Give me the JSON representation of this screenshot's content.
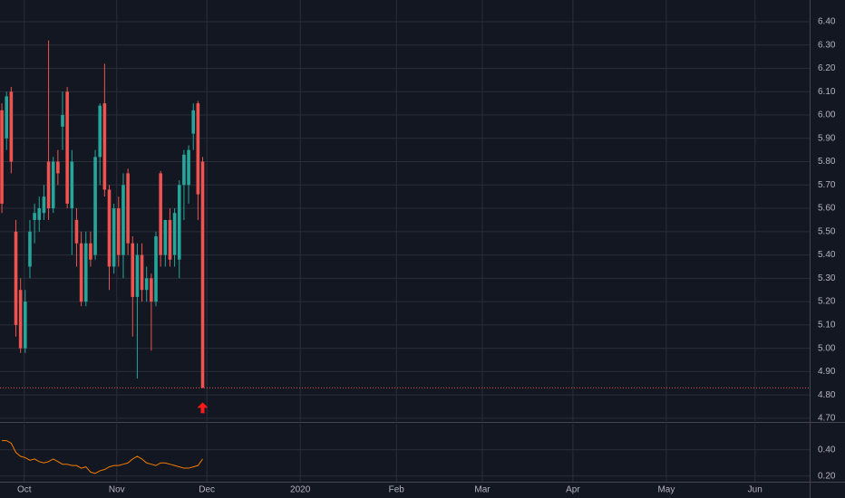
{
  "chart_data": [
    {
      "type": "candlestick",
      "x": [
        0,
        1,
        2,
        3,
        4,
        5,
        6,
        7,
        8,
        9,
        10,
        11,
        12,
        13,
        14,
        15,
        16,
        17,
        18,
        19,
        20,
        21,
        22,
        23,
        24,
        25,
        26,
        27,
        28,
        29,
        30,
        31,
        32,
        33,
        34,
        35,
        36,
        37,
        38,
        39,
        40,
        41,
        42,
        43
      ],
      "open": [
        6.02,
        5.9,
        6.1,
        5.5,
        5.25,
        5.0,
        5.35,
        5.55,
        5.55,
        5.58,
        5.8,
        5.6,
        5.8,
        5.95,
        6.1,
        5.6,
        5.55,
        5.45,
        5.2,
        5.45,
        5.4,
        5.82,
        6.05,
        5.68,
        5.35,
        5.6,
        5.4,
        5.75,
        5.45,
        5.22,
        5.4,
        5.25,
        5.3,
        5.2,
        5.75,
        5.4,
        5.55,
        5.4,
        5.38,
        5.7,
        5.7,
        5.92,
        6.05,
        5.8
      ],
      "high": [
        6.05,
        6.1,
        6.12,
        5.55,
        5.3,
        5.25,
        5.55,
        5.62,
        5.65,
        5.7,
        6.32,
        5.82,
        5.85,
        6.1,
        6.12,
        5.85,
        5.6,
        5.5,
        5.5,
        5.5,
        5.85,
        6.05,
        6.22,
        5.7,
        5.62,
        5.65,
        5.75,
        5.77,
        5.48,
        5.45,
        5.45,
        5.35,
        5.32,
        5.5,
        5.76,
        5.55,
        5.6,
        5.6,
        5.72,
        5.85,
        5.87,
        6.05,
        6.06,
        5.82
      ],
      "low": [
        5.58,
        5.85,
        5.75,
        5.05,
        4.98,
        4.98,
        5.3,
        5.45,
        5.5,
        5.55,
        5.55,
        5.58,
        5.7,
        5.85,
        5.6,
        5.4,
        5.35,
        5.18,
        5.18,
        5.35,
        5.38,
        5.7,
        5.65,
        5.25,
        5.32,
        5.35,
        5.3,
        5.4,
        5.05,
        4.87,
        5.2,
        5.2,
        4.99,
        5.18,
        5.35,
        5.35,
        5.35,
        5.35,
        5.3,
        5.55,
        5.62,
        5.85,
        5.55,
        4.83
      ],
      "close": [
        5.62,
        6.08,
        5.8,
        5.1,
        5.0,
        5.2,
        5.5,
        5.58,
        5.6,
        5.65,
        5.6,
        5.8,
        5.75,
        6.0,
        5.62,
        5.8,
        5.45,
        5.2,
        5.45,
        5.38,
        5.82,
        6.04,
        5.68,
        5.35,
        5.6,
        5.4,
        5.7,
        5.45,
        5.22,
        5.4,
        5.25,
        5.3,
        5.2,
        5.48,
        5.4,
        5.55,
        5.38,
        5.58,
        5.7,
        5.83,
        5.85,
        6.02,
        5.66,
        4.83
      ],
      "up_color": "#26a69a",
      "down_color": "#ef5350",
      "xlim": [
        -0.4,
        173
      ],
      "ylim": [
        4.688,
        6.493
      ],
      "yticks": [
        {
          "value": 4.7,
          "label": "4.70"
        },
        {
          "value": 4.8,
          "label": "4.80"
        },
        {
          "value": 4.9,
          "label": "4.90"
        },
        {
          "value": 5.0,
          "label": "5.00"
        },
        {
          "value": 5.1,
          "label": "5.10"
        },
        {
          "value": 5.2,
          "label": "5.20"
        },
        {
          "value": 5.3,
          "label": "5.30"
        },
        {
          "value": 5.4,
          "label": "5.40"
        },
        {
          "value": 5.5,
          "label": "5.50"
        },
        {
          "value": 5.6,
          "label": "5.60"
        },
        {
          "value": 5.7,
          "label": "5.70"
        },
        {
          "value": 5.8,
          "label": "5.80"
        },
        {
          "value": 5.9,
          "label": "5.90"
        },
        {
          "value": 6.0,
          "label": "6.00"
        },
        {
          "value": 6.1,
          "label": "6.10"
        },
        {
          "value": 6.2,
          "label": "6.20"
        },
        {
          "value": 6.3,
          "label": "6.30"
        },
        {
          "value": 6.4,
          "label": "6.40"
        }
      ],
      "grid": true
    },
    {
      "type": "line",
      "x": [
        0,
        1,
        2,
        3,
        4,
        5,
        6,
        7,
        8,
        9,
        10,
        11,
        12,
        13,
        14,
        15,
        16,
        17,
        18,
        19,
        20,
        21,
        22,
        23,
        24,
        25,
        26,
        27,
        28,
        29,
        30,
        31,
        32,
        33,
        34,
        35,
        36,
        37,
        38,
        39,
        40,
        41,
        42,
        43
      ],
      "values": [
        0.47,
        0.47,
        0.45,
        0.38,
        0.35,
        0.34,
        0.32,
        0.33,
        0.31,
        0.3,
        0.31,
        0.33,
        0.31,
        0.29,
        0.29,
        0.28,
        0.28,
        0.26,
        0.27,
        0.23,
        0.22,
        0.24,
        0.25,
        0.27,
        0.28,
        0.28,
        0.29,
        0.3,
        0.33,
        0.35,
        0.33,
        0.3,
        0.29,
        0.28,
        0.3,
        0.3,
        0.29,
        0.28,
        0.27,
        0.26,
        0.26,
        0.27,
        0.28,
        0.33
      ],
      "color": "#f57c00",
      "xlim": [
        -0.4,
        173
      ],
      "xticks": [
        {
          "value": 4.8,
          "label": "Oct"
        },
        {
          "value": 24.6,
          "label": "Nov"
        },
        {
          "value": 43.9,
          "label": "Dec"
        },
        {
          "value": 63.9,
          "label": "2020"
        },
        {
          "value": 84.5,
          "label": "Feb"
        },
        {
          "value": 102.9,
          "label": "Mar"
        },
        {
          "value": 122.3,
          "label": "Apr"
        },
        {
          "value": 142.3,
          "label": "May"
        },
        {
          "value": 161.3,
          "label": "Jun"
        }
      ],
      "ylim": [
        0.157,
        0.598
      ],
      "yticks": [
        {
          "value": 0.2,
          "label": "0.20"
        },
        {
          "value": 0.4,
          "label": "0.40"
        }
      ],
      "grid": true
    }
  ]
}
